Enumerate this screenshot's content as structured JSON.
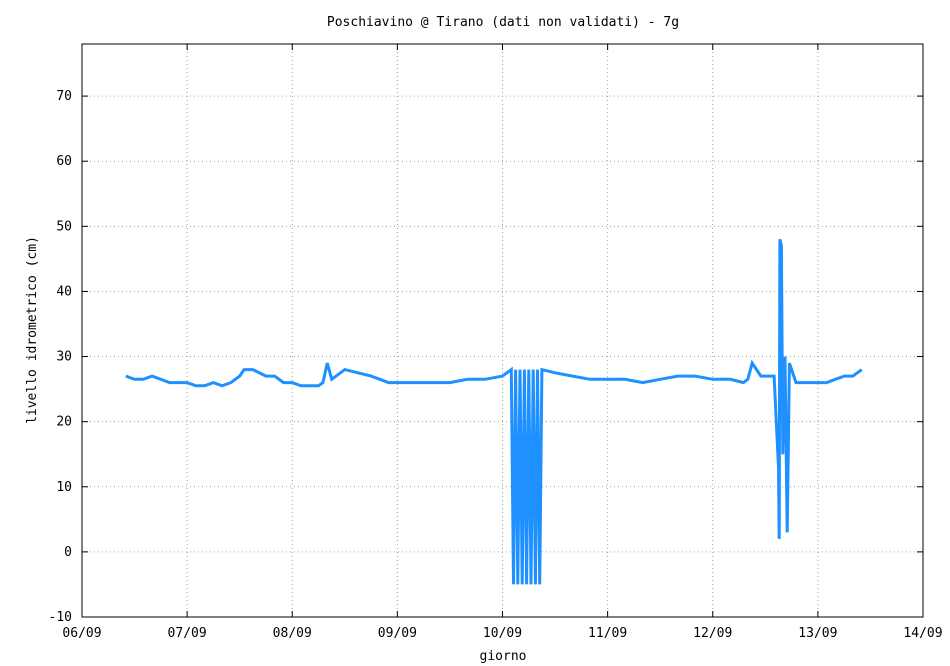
{
  "chart_data": {
    "type": "line",
    "title": "Poschiavino @ Tirano (dati non validati) - 7g",
    "xlabel": "giorno",
    "ylabel": "livello idrometrico (cm)",
    "xlim": [
      "06/09 00:00",
      "14/09 00:00"
    ],
    "ylim": [
      -10,
      78
    ],
    "xticks": [
      "06/09",
      "07/09",
      "08/09",
      "09/09",
      "10/09",
      "11/09",
      "12/09",
      "13/09",
      "14/09"
    ],
    "yticks": [
      -10,
      0,
      10,
      20,
      30,
      40,
      50,
      60,
      70
    ],
    "grid": true,
    "line_color": "#1e90ff",
    "series": [
      {
        "x": [
          "06/09 10:00",
          "06/09 12:00",
          "06/09 14:00",
          "06/09 16:00",
          "06/09 18:00",
          "06/09 20:00",
          "06/09 22:00",
          "07/09 00:00",
          "07/09 02:00",
          "07/09 04:00",
          "07/09 06:00",
          "07/09 08:00",
          "07/09 10:00",
          "07/09 12:00",
          "07/09 13:00",
          "07/09 15:00",
          "07/09 18:00",
          "07/09 20:00",
          "07/09 22:00",
          "08/09 00:00",
          "08/09 02:00",
          "08/09 04:00",
          "08/09 06:00",
          "08/09 07:00",
          "08/09 08:00",
          "08/09 09:00",
          "08/09 12:00",
          "08/09 15:00",
          "08/09 18:00",
          "08/09 22:00",
          "09/09 03:00",
          "09/09 08:00",
          "09/09 12:00",
          "09/09 16:00",
          "09/09 20:00",
          "10/09 00:00",
          "10/09 02:00",
          "10/09 02:30",
          "10/09 03:00",
          "10/09 03:30",
          "10/09 04:00",
          "10/09 04:30",
          "10/09 05:00",
          "10/09 05:30",
          "10/09 06:00",
          "10/09 06:30",
          "10/09 07:00",
          "10/09 07:30",
          "10/09 08:00",
          "10/09 08:30",
          "10/09 09:00",
          "10/09 12:00",
          "10/09 16:00",
          "10/09 20:00",
          "11/09 00:00",
          "11/09 04:00",
          "11/09 08:00",
          "11/09 12:00",
          "11/09 16:00",
          "11/09 20:00",
          "12/09 00:00",
          "12/09 04:00",
          "12/09 07:00",
          "12/09 08:00",
          "12/09 09:00",
          "12/09 11:00",
          "12/09 13:00",
          "12/09 14:00",
          "12/09 15:00",
          "12/09 15:10",
          "12/09 15:20",
          "12/09 15:40",
          "12/09 16:00",
          "12/09 16:30",
          "12/09 17:00",
          "12/09 17:30",
          "12/09 18:00",
          "12/09 18:30",
          "12/09 19:00",
          "12/09 19:30",
          "12/09 22:00",
          "13/09 00:00",
          "13/09 02:00",
          "13/09 04:00",
          "13/09 06:00",
          "13/09 08:00",
          "13/09 09:00",
          "13/09 10:00"
        ],
        "y": [
          27,
          26.5,
          26.5,
          27,
          26.5,
          26,
          26,
          26,
          25.5,
          25.5,
          26,
          25.5,
          26,
          27,
          28,
          28,
          27,
          27,
          26,
          26,
          25.5,
          25.5,
          25.5,
          26,
          29,
          26.5,
          28,
          27.5,
          27,
          26,
          26,
          26,
          26,
          26.5,
          26.5,
          27,
          28,
          -5,
          28,
          -5,
          28,
          -5,
          28,
          -5,
          28,
          -5,
          28,
          -5,
          28,
          -5,
          28,
          27.5,
          27,
          26.5,
          26.5,
          26.5,
          26,
          26.5,
          27,
          27,
          26.5,
          26.5,
          26,
          26.5,
          29,
          27,
          27,
          27,
          13,
          2,
          48,
          47,
          15,
          30,
          3,
          29,
          28,
          27,
          26,
          26,
          26,
          26,
          26,
          26.5,
          27,
          27,
          27.5,
          28
        ]
      }
    ]
  }
}
